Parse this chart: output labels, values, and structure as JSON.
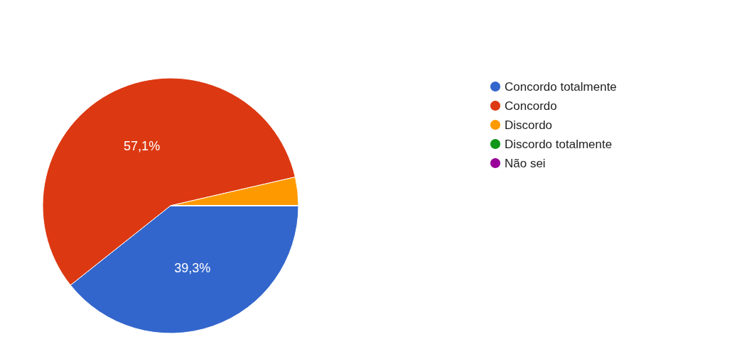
{
  "chart_data": {
    "type": "pie",
    "categories": [
      "Concordo totalmente",
      "Concordo",
      "Discordo",
      "Discordo totalmente",
      "Não sei"
    ],
    "values": [
      39.3,
      57.1,
      3.6,
      0,
      0
    ],
    "colors": [
      "#3366cc",
      "#dc3912",
      "#ff9900",
      "#109618",
      "#990099"
    ],
    "value_labels": [
      "39,3%",
      "57,1%",
      null,
      null,
      null
    ],
    "legend": "right"
  }
}
